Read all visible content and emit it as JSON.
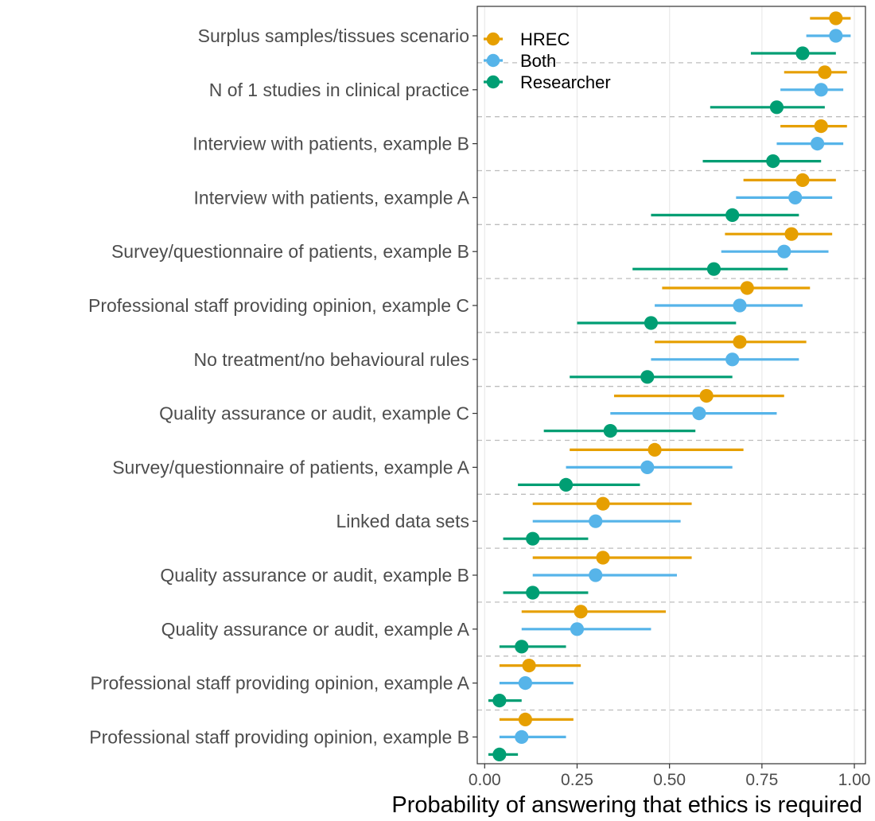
{
  "chart_data": {
    "type": "scatter",
    "subtype": "dot-and-interval (point estimate with interval, horizontal)",
    "title": "",
    "xlabel": "Probability of answering that ethics is required",
    "ylabel": "",
    "xlim": [
      0,
      1
    ],
    "x_ticks": [
      "0.00",
      "0.25",
      "0.50",
      "0.75",
      "1.00"
    ],
    "x_tick_values": [
      0,
      0.25,
      0.5,
      0.75,
      1.0
    ],
    "grid": "vertical gridlines at ticks; dashed horizontal separators between categories",
    "legend_position": "top-left (inside plot)",
    "categories": [
      "Surplus samples/tissues scenario",
      "N of 1 studies in clinical practice",
      "Interview with patients, example B",
      "Interview with patients, example A",
      "Survey/questionnaire of patients, example B",
      "Professional staff providing opinion, example C",
      "No treatment/no behavioural rules",
      "Quality assurance or audit, example C",
      "Survey/questionnaire of patients, example A",
      "Linked data sets",
      "Quality assurance or audit, example B",
      "Quality assurance or audit, example A",
      "Professional staff providing opinion, example A",
      "Professional staff providing opinion, example B"
    ],
    "series": [
      {
        "name": "HREC",
        "color": "#E69F00",
        "values": [
          0.95,
          0.92,
          0.91,
          0.86,
          0.83,
          0.71,
          0.69,
          0.6,
          0.46,
          0.32,
          0.32,
          0.26,
          0.12,
          0.11
        ],
        "lower": [
          0.88,
          0.81,
          0.8,
          0.7,
          0.65,
          0.48,
          0.46,
          0.35,
          0.23,
          0.13,
          0.13,
          0.1,
          0.04,
          0.04
        ],
        "upper": [
          0.99,
          0.98,
          0.98,
          0.95,
          0.94,
          0.88,
          0.87,
          0.81,
          0.7,
          0.56,
          0.56,
          0.49,
          0.26,
          0.24
        ]
      },
      {
        "name": "Both",
        "color": "#56B4E9",
        "values": [
          0.95,
          0.91,
          0.9,
          0.84,
          0.81,
          0.69,
          0.67,
          0.58,
          0.44,
          0.3,
          0.3,
          0.25,
          0.11,
          0.1
        ],
        "lower": [
          0.87,
          0.8,
          0.79,
          0.68,
          0.64,
          0.46,
          0.45,
          0.34,
          0.22,
          0.13,
          0.13,
          0.1,
          0.04,
          0.04
        ],
        "upper": [
          0.99,
          0.97,
          0.97,
          0.94,
          0.93,
          0.86,
          0.85,
          0.79,
          0.67,
          0.53,
          0.52,
          0.45,
          0.24,
          0.22
        ]
      },
      {
        "name": "Researcher",
        "color": "#009E73",
        "values": [
          0.86,
          0.79,
          0.78,
          0.67,
          0.62,
          0.45,
          0.44,
          0.34,
          0.22,
          0.13,
          0.13,
          0.1,
          0.04,
          0.04
        ],
        "lower": [
          0.72,
          0.61,
          0.59,
          0.45,
          0.4,
          0.25,
          0.23,
          0.16,
          0.09,
          0.05,
          0.05,
          0.04,
          0.01,
          0.01
        ],
        "upper": [
          0.95,
          0.92,
          0.91,
          0.85,
          0.82,
          0.68,
          0.67,
          0.57,
          0.42,
          0.28,
          0.28,
          0.22,
          0.1,
          0.09
        ]
      }
    ]
  }
}
